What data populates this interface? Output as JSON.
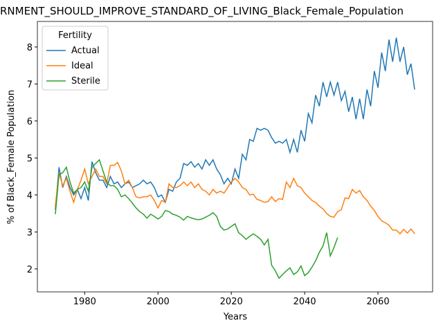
{
  "chart_data": {
    "type": "line",
    "title": "RNMENT_SHOULD_IMPROVE_STANDARD_OF_LIVING_Black_Female_Population",
    "xlabel": "Years",
    "ylabel": "% of Black_Female Population",
    "legend_title": "Fertility",
    "legend": "upper left",
    "x": [
      1972,
      1973,
      1974,
      1975,
      1976,
      1977,
      1978,
      1979,
      1980,
      1981,
      1982,
      1983,
      1984,
      1985,
      1986,
      1987,
      1988,
      1989,
      1990,
      1991,
      1992,
      1993,
      1994,
      1995,
      1996,
      1997,
      1998,
      1999,
      2000,
      2001,
      2002,
      2003,
      2004,
      2005,
      2006,
      2007,
      2008,
      2009,
      2010,
      2011,
      2012,
      2013,
      2014,
      2015,
      2016,
      2017,
      2018,
      2019,
      2020,
      2021,
      2022,
      2023,
      2024,
      2025,
      2026,
      2027,
      2028,
      2029,
      2030,
      2031,
      2032,
      2033,
      2034,
      2035,
      2036,
      2037,
      2038,
      2039,
      2040,
      2041,
      2042,
      2043,
      2044,
      2045,
      2046,
      2047,
      2048,
      2049,
      2050,
      2051,
      2052,
      2053,
      2054,
      2055,
      2056,
      2057,
      2058,
      2059,
      2060,
      2061,
      2062,
      2063,
      2064,
      2065,
      2066,
      2067,
      2068,
      2069,
      2070
    ],
    "series": [
      {
        "name": "Actual",
        "color": "#1f77b4",
        "values": [
          3.6,
          4.75,
          4.2,
          4.5,
          4.2,
          4.0,
          4.15,
          3.9,
          4.2,
          3.85,
          4.9,
          4.6,
          4.4,
          4.4,
          4.2,
          4.5,
          4.3,
          4.35,
          4.2,
          4.3,
          4.35,
          4.2,
          4.25,
          4.3,
          4.4,
          4.3,
          4.35,
          4.2,
          3.95,
          4.0,
          3.8,
          4.15,
          4.1,
          4.35,
          4.45,
          4.85,
          4.8,
          4.9,
          4.75,
          4.85,
          4.7,
          4.95,
          4.8,
          4.95,
          4.7,
          4.55,
          4.3,
          4.45,
          4.3,
          4.7,
          4.45,
          5.1,
          4.95,
          5.5,
          5.45,
          5.8,
          5.75,
          5.8,
          5.75,
          5.55,
          5.4,
          5.45,
          5.4,
          5.5,
          5.15,
          5.5,
          5.15,
          5.75,
          5.45,
          6.2,
          5.95,
          6.7,
          6.4,
          7.05,
          6.65,
          7.05,
          6.7,
          7.05,
          6.55,
          6.8,
          6.25,
          6.65,
          6.05,
          6.6,
          6.05,
          6.85,
          6.4,
          7.35,
          6.9,
          7.85,
          7.35,
          8.2,
          7.6,
          8.25,
          7.6,
          8.0,
          7.25,
          7.55,
          6.85
        ]
      },
      {
        "name": "Ideal",
        "color": "#ff7f0e",
        "values": [
          3.7,
          4.6,
          4.25,
          4.45,
          4.1,
          3.8,
          4.15,
          4.4,
          4.7,
          4.3,
          4.5,
          4.7,
          4.5,
          4.5,
          4.3,
          4.8,
          4.8,
          4.88,
          4.65,
          4.3,
          4.4,
          4.2,
          3.95,
          3.92,
          3.95,
          3.95,
          4.0,
          3.85,
          3.65,
          3.85,
          3.8,
          4.3,
          4.2,
          4.2,
          4.25,
          4.35,
          4.25,
          4.35,
          4.2,
          4.3,
          4.15,
          4.1,
          4.0,
          4.15,
          4.05,
          4.1,
          4.05,
          4.2,
          4.35,
          4.45,
          4.35,
          4.2,
          4.15,
          4.0,
          4.02,
          3.88,
          3.85,
          3.8,
          3.82,
          3.95,
          3.82,
          3.9,
          3.88,
          4.35,
          4.2,
          4.45,
          4.25,
          4.2,
          4.05,
          3.95,
          3.85,
          3.8,
          3.7,
          3.62,
          3.5,
          3.42,
          3.4,
          3.55,
          3.6,
          3.92,
          3.9,
          4.15,
          4.05,
          4.12,
          3.95,
          3.85,
          3.7,
          3.58,
          3.42,
          3.3,
          3.25,
          3.18,
          3.05,
          3.05,
          2.95,
          3.07,
          2.97,
          3.08,
          2.95
        ]
      },
      {
        "name": "Sterile",
        "color": "#2ca02c",
        "values": [
          3.48,
          4.55,
          4.6,
          4.75,
          4.35,
          4.05,
          4.15,
          4.2,
          4.35,
          4.1,
          4.75,
          4.85,
          4.95,
          4.65,
          4.35,
          4.25,
          4.25,
          4.15,
          3.95,
          4.0,
          3.9,
          3.78,
          3.65,
          3.55,
          3.48,
          3.37,
          3.48,
          3.42,
          3.35,
          3.42,
          3.58,
          3.55,
          3.48,
          3.45,
          3.4,
          3.32,
          3.42,
          3.38,
          3.35,
          3.33,
          3.35,
          3.4,
          3.45,
          3.52,
          3.42,
          3.15,
          3.05,
          3.08,
          3.15,
          3.22,
          2.98,
          2.9,
          2.8,
          2.88,
          2.95,
          2.88,
          2.8,
          2.65,
          2.8,
          2.1,
          1.95,
          1.75,
          1.85,
          1.95,
          2.03,
          1.85,
          1.92,
          2.08,
          1.82,
          1.9,
          2.05,
          2.22,
          2.45,
          2.62,
          2.98,
          2.35,
          2.58,
          2.85,
          null,
          null,
          null,
          null,
          null,
          null,
          null,
          null,
          null,
          null,
          null,
          null,
          null,
          null,
          null,
          null,
          null,
          null,
          null,
          null,
          null
        ]
      }
    ],
    "xlim": [
      1967.1,
      2074.9
    ],
    "xticks": [
      1980,
      2000,
      2020,
      2040,
      2060
    ],
    "ylim": [
      1.38,
      8.69
    ],
    "yticks": [
      2,
      3,
      4,
      5,
      6,
      7,
      8
    ]
  }
}
